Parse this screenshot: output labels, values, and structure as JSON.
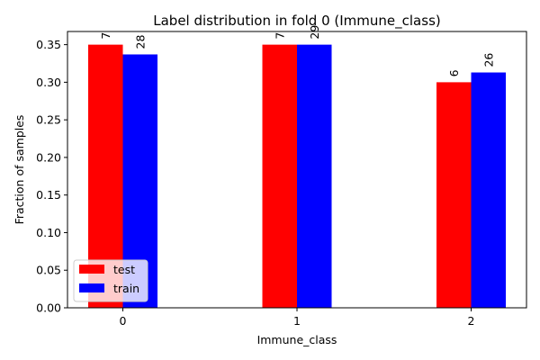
{
  "chart_data": {
    "type": "bar",
    "title": "Label distribution in fold 0 (Immune_class)",
    "xlabel": "Immune_class",
    "ylabel": "Fraction of samples",
    "categories": [
      "0",
      "1",
      "2"
    ],
    "series": [
      {
        "name": "test",
        "color": "#ff0000",
        "values": [
          0.35,
          0.35,
          0.3
        ],
        "labels": [
          "7",
          "7",
          "6"
        ]
      },
      {
        "name": "train",
        "color": "#0000ff",
        "values": [
          0.337,
          0.35,
          0.313
        ],
        "labels": [
          "28",
          "29",
          "26"
        ]
      }
    ],
    "ylim": [
      0,
      0.3675
    ],
    "yticks": [
      "0.00",
      "0.05",
      "0.10",
      "0.15",
      "0.20",
      "0.25",
      "0.30",
      "0.35"
    ],
    "grid": false,
    "legend_position": "lower-left"
  }
}
